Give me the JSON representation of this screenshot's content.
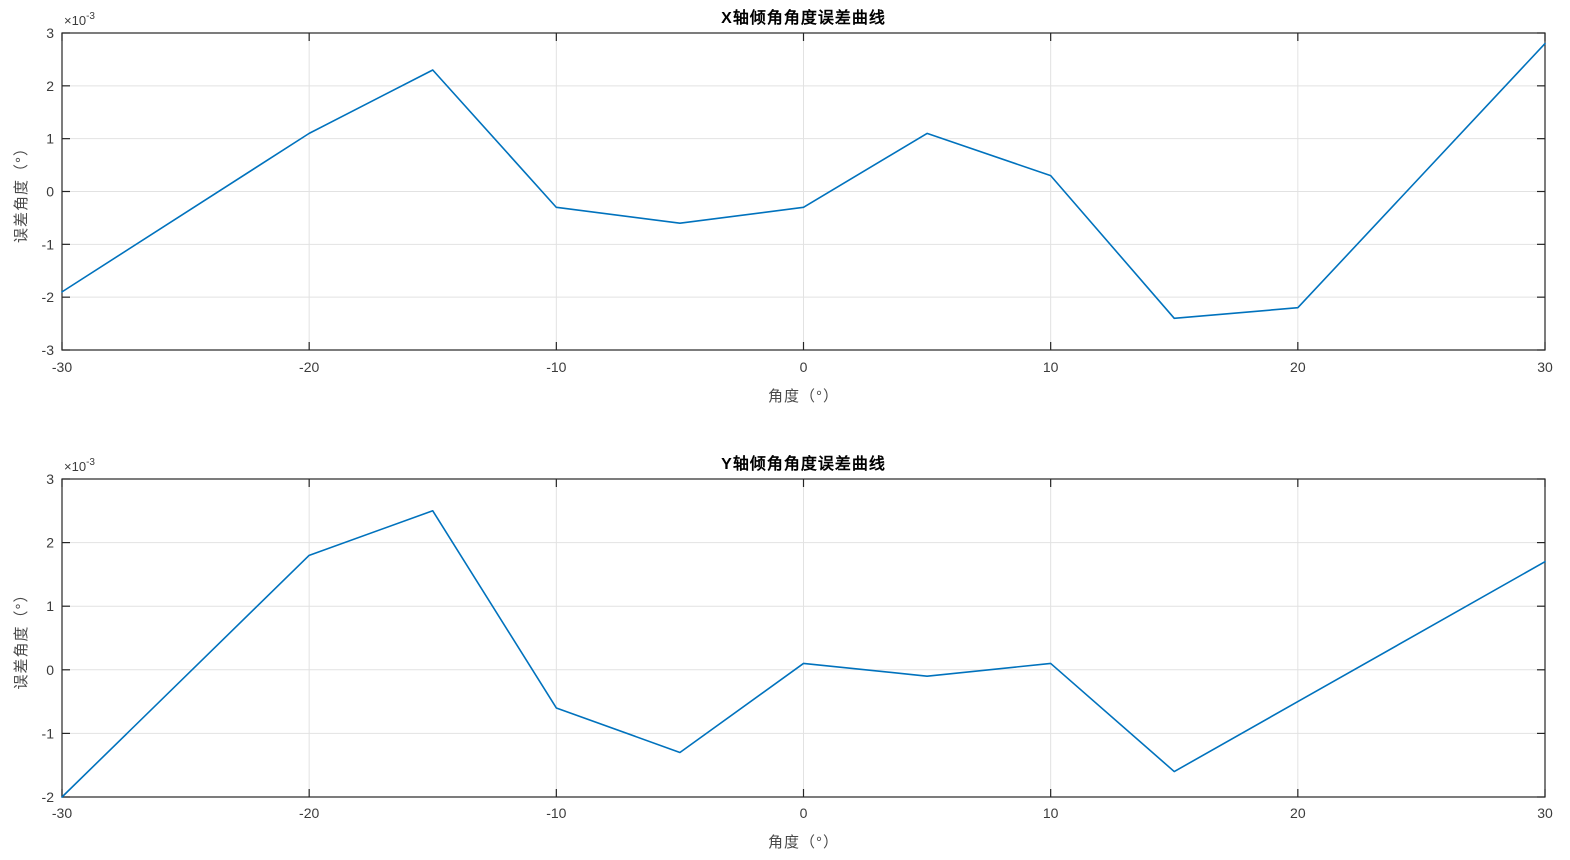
{
  "figure": {
    "background": "#ffffff"
  },
  "style": {
    "line_color": "#0072BD",
    "axis_color": "#262626",
    "grid_color": "#e2e2e2",
    "title_color": "#000000",
    "label_color": "#4a4a4a"
  },
  "chart_data": [
    {
      "type": "line",
      "title": "X轴倾角角度误差曲线",
      "xlabel": "角度（°）",
      "ylabel": "误差角度（°）",
      "y_multiplier": {
        "base": "×10",
        "exp": "-3"
      },
      "grid": true,
      "legend": "none",
      "xlim": [
        -30,
        30
      ],
      "ylim_e3": [
        -3,
        3
      ],
      "x_ticks": [
        -30,
        -20,
        -10,
        0,
        10,
        20,
        30
      ],
      "x_tick_labels": [
        "-30",
        "-20",
        "-10",
        "0",
        "10",
        "20",
        "30"
      ],
      "y_ticks_e3": [
        -3,
        -2,
        -1,
        0,
        1,
        2,
        3
      ],
      "y_tick_labels": [
        "-3",
        "-2",
        "-1",
        "0",
        "1",
        "2",
        "3"
      ],
      "x": [
        -30,
        -20,
        -15,
        -10,
        -5,
        0,
        5,
        10,
        15,
        20,
        30
      ],
      "y_e3": [
        -1.9,
        1.1,
        2.3,
        -0.3,
        -0.6,
        -0.3,
        1.1,
        0.3,
        -2.4,
        -2.2,
        2.8
      ],
      "y_unit": "1e-3 degrees"
    },
    {
      "type": "line",
      "title": "Y轴倾角角度误差曲线",
      "xlabel": "角度（°）",
      "ylabel": "误差角度（°）",
      "y_multiplier": {
        "base": "×10",
        "exp": "-3"
      },
      "grid": true,
      "legend": "none",
      "xlim": [
        -30,
        30
      ],
      "ylim_e3": [
        -2,
        3
      ],
      "x_ticks": [
        -30,
        -20,
        -10,
        0,
        10,
        20,
        30
      ],
      "x_tick_labels": [
        "-30",
        "-20",
        "-10",
        "0",
        "10",
        "20",
        "30"
      ],
      "y_ticks_e3": [
        -2,
        -1,
        0,
        1,
        2,
        3
      ],
      "y_tick_labels": [
        "-2",
        "-1",
        "0",
        "1",
        "2",
        "3"
      ],
      "x": [
        -30,
        -20,
        -15,
        -10,
        -5,
        0,
        5,
        10,
        15,
        20,
        30
      ],
      "y_e3": [
        -2.0,
        1.8,
        2.5,
        -0.6,
        -1.3,
        0.1,
        -0.1,
        0.1,
        -1.6,
        -0.5,
        1.7
      ],
      "y_unit": "1e-3 degrees"
    }
  ]
}
